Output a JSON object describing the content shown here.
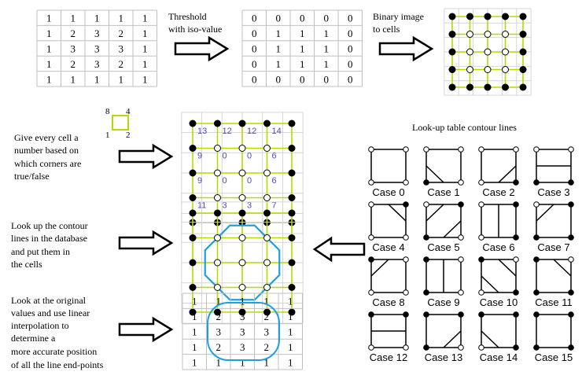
{
  "colors": {
    "grid_line": "#c0c0c0",
    "cell_line": "#b8d900",
    "contour": "#1ea0e0",
    "cell_number": "#4a4ac0",
    "arrow_fill": "#ffffff",
    "arrow_stroke": "#000000"
  },
  "input_grid": {
    "values": [
      [
        1,
        1,
        1,
        1,
        1
      ],
      [
        1,
        2,
        3,
        2,
        1
      ],
      [
        1,
        3,
        3,
        3,
        1
      ],
      [
        1,
        2,
        3,
        2,
        1
      ],
      [
        1,
        1,
        1,
        1,
        1
      ]
    ]
  },
  "threshold_step": {
    "label_line1": "Threshold",
    "label_line2": "with iso-value"
  },
  "binary_grid": {
    "values": [
      [
        0,
        0,
        0,
        0,
        0
      ],
      [
        0,
        1,
        1,
        1,
        0
      ],
      [
        0,
        1,
        1,
        1,
        0
      ],
      [
        0,
        1,
        1,
        1,
        0
      ],
      [
        0,
        0,
        0,
        0,
        0
      ]
    ]
  },
  "binary_to_cells_step": {
    "label_line1": "Binary image",
    "label_line2": "to cells"
  },
  "corner_legend": {
    "top_left": "8",
    "top_right": "4",
    "bottom_left": "1",
    "bottom_right": "2"
  },
  "numbering_step": {
    "lines": [
      "Give every cell a",
      "number based on",
      "which corners are",
      "true/false"
    ]
  },
  "cell_numbers": [
    [
      "13",
      "12",
      "12",
      "14"
    ],
    [
      "9",
      "0",
      "0",
      "6"
    ],
    [
      "9",
      "0",
      "0",
      "6"
    ],
    [
      "11",
      "3",
      "3",
      "7"
    ]
  ],
  "lookup_step": {
    "lines": [
      "Look up the contour",
      "lines in the database",
      "and put them in",
      "the cells"
    ]
  },
  "interpolation_step": {
    "lines": [
      "Look at the original",
      "values and use linear",
      "interpolation to",
      "determine a",
      "more accurate position",
      "of all the line end-points"
    ]
  },
  "interpolated_grid": {
    "values": [
      [
        1,
        1,
        1,
        1,
        1
      ],
      [
        1,
        2,
        3,
        2,
        1
      ],
      [
        1,
        3,
        3,
        3,
        1
      ],
      [
        1,
        2,
        3,
        2,
        1
      ],
      [
        1,
        1,
        1,
        1,
        1
      ]
    ]
  },
  "lookup_table": {
    "title": "Look-up table contour lines",
    "cases": [
      "Case 0",
      "Case 1",
      "Case 2",
      "Case 3",
      "Case 4",
      "Case 5",
      "Case 6",
      "Case 7",
      "Case 8",
      "Case 9",
      "Case 10",
      "Case 11",
      "Case 12",
      "Case 13",
      "Case 14",
      "Case 15"
    ]
  }
}
